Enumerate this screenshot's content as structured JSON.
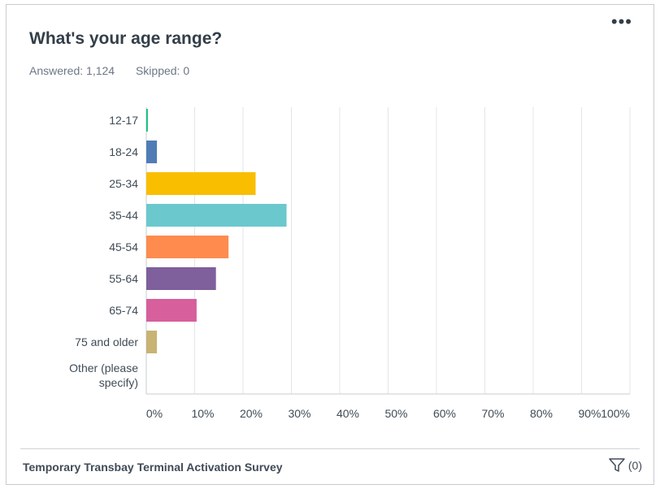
{
  "card": {
    "title": "What's your age range?",
    "answered": "Answered: 1,124",
    "skipped": "Skipped: 0",
    "menu_icon": "more-horizontal-icon"
  },
  "footer": {
    "survey_name": "Temporary Transbay Terminal Activation Survey",
    "filter_icon": "filter-icon",
    "filter_count": "(0)"
  },
  "chart_data": {
    "type": "bar",
    "orientation": "horizontal",
    "categories": [
      "12-17",
      "18-24",
      "25-34",
      "35-44",
      "45-54",
      "55-64",
      "65-74",
      "75 and older",
      "Other (please specify)"
    ],
    "values": [
      0.3,
      2.2,
      22.6,
      29.0,
      17.0,
      14.4,
      10.4,
      2.2,
      0
    ],
    "colors": [
      "#00bf6f",
      "#507cb6",
      "#f9be00",
      "#6bc8cd",
      "#ff8b4f",
      "#7f5f9c",
      "#d65f9c",
      "#c8b374",
      "#7fa45a"
    ],
    "xlim": [
      0,
      100
    ],
    "xticks": [
      "0%",
      "10%",
      "20%",
      "30%",
      "40%",
      "50%",
      "60%",
      "70%",
      "80%",
      "90%",
      "100%"
    ],
    "grid": true
  }
}
